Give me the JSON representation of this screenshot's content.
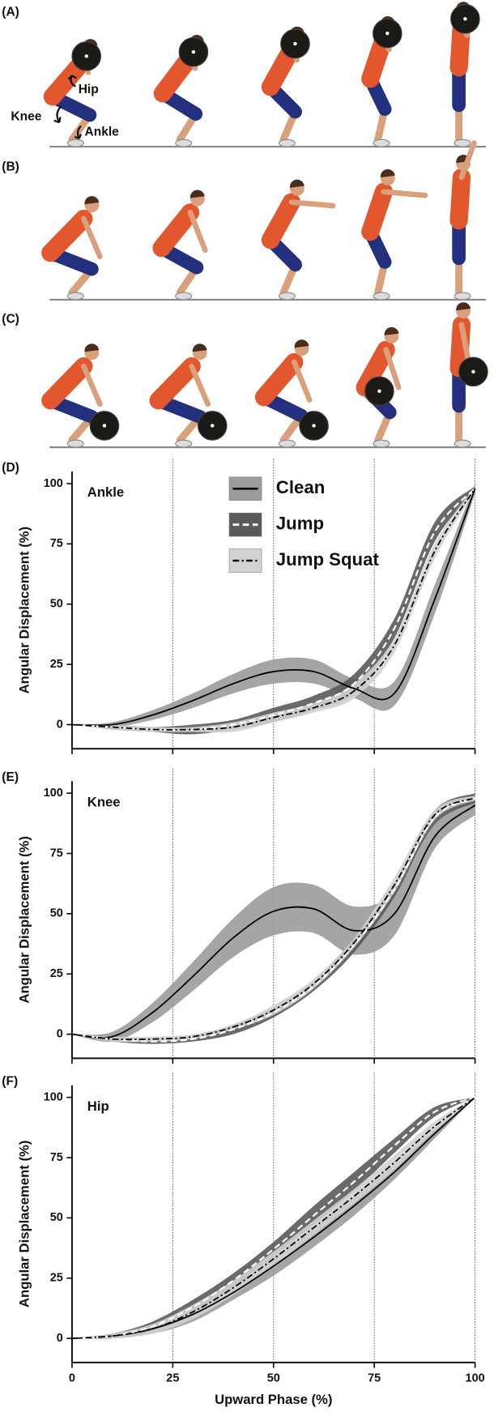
{
  "panels": [
    {
      "label": "(A)",
      "annotations": [
        "Hip",
        "Knee",
        "Ankle"
      ]
    },
    {
      "label": "(B)"
    },
    {
      "label": "(C)"
    }
  ],
  "chart_data": [
    {
      "type": "line",
      "panel_label": "(D)",
      "title": "Ankle",
      "ylabel": "Angular Displacement (%)",
      "x": [
        0,
        10,
        20,
        30,
        40,
        50,
        60,
        70,
        80,
        90,
        100
      ],
      "xlim": [
        0,
        100
      ],
      "xticks": [
        0,
        25,
        50,
        75,
        100
      ],
      "xtick_labels": false,
      "ylim": [
        -10,
        105
      ],
      "yticks": [
        0,
        25,
        50,
        75,
        100
      ],
      "vgrid": true,
      "legend": "upper center",
      "series": [
        {
          "name": "Clean",
          "color": "#9b9b9b",
          "line_color": "#000000",
          "line_style": "solid",
          "values": [
            0,
            0,
            4,
            10,
            17,
            22,
            22,
            15,
            13,
            52,
            98
          ],
          "sd": [
            0,
            1,
            2,
            3,
            4,
            5,
            5,
            4,
            5,
            6,
            2
          ]
        },
        {
          "name": "Jump",
          "color": "#5a5a5a",
          "line_color": "#ffffff",
          "line_style": "dashed",
          "values": [
            0,
            -1,
            -2,
            -2,
            0,
            4,
            9,
            17,
            40,
            80,
            98
          ],
          "sd": [
            0,
            1,
            1,
            2,
            2,
            3,
            3,
            4,
            4,
            4,
            1
          ]
        },
        {
          "name": "Jump Squat",
          "color": "#d2d2d2",
          "line_color": "#000000",
          "line_style": "dashdot",
          "values": [
            0,
            -1,
            -2,
            -2,
            -1,
            3,
            7,
            14,
            33,
            72,
            98
          ],
          "sd": [
            0,
            1,
            1,
            1,
            2,
            2,
            2,
            3,
            3,
            3,
            1
          ]
        }
      ]
    },
    {
      "type": "line",
      "panel_label": "(E)",
      "title": "Knee",
      "ylabel": "Angular Displacement (%)",
      "x": [
        0,
        10,
        20,
        30,
        40,
        50,
        60,
        70,
        80,
        90,
        100
      ],
      "xlim": [
        0,
        100
      ],
      "xticks": [
        0,
        25,
        50,
        75,
        100
      ],
      "xtick_labels": false,
      "ylim": [
        -10,
        105
      ],
      "yticks": [
        0,
        25,
        50,
        75,
        100
      ],
      "vgrid": true,
      "series": [
        {
          "color": "#9b9b9b",
          "line_color": "#000000",
          "line_style": "solid",
          "values": [
            0,
            -1,
            9,
            24,
            40,
            51,
            52,
            43,
            50,
            82,
            95
          ],
          "sd": [
            0,
            2,
            4,
            6,
            8,
            10,
            10,
            10,
            9,
            5,
            4
          ]
        },
        {
          "color": "#5a5a5a",
          "line_color": "#ffffff",
          "line_style": "dashed",
          "values": [
            0,
            -2,
            -3,
            -2,
            2,
            9,
            20,
            37,
            60,
            90,
            98
          ],
          "sd": [
            0,
            1,
            1,
            1,
            2,
            2,
            2,
            3,
            3,
            3,
            2
          ]
        },
        {
          "color": "#d2d2d2",
          "line_color": "#000000",
          "line_style": "dashdot",
          "values": [
            0,
            -2,
            -2,
            -1,
            3,
            10,
            21,
            38,
            62,
            91,
            98
          ],
          "sd": [
            0,
            1,
            1,
            1,
            1,
            2,
            2,
            2,
            3,
            2,
            1
          ]
        }
      ]
    },
    {
      "type": "line",
      "panel_label": "(F)",
      "title": "Hip",
      "ylabel": "Angular Displacement (%)",
      "xlabel": "Upward Phase (%)",
      "x": [
        0,
        10,
        20,
        30,
        40,
        50,
        60,
        70,
        80,
        90,
        100
      ],
      "xlim": [
        0,
        100
      ],
      "xticks": [
        0,
        25,
        50,
        75,
        100
      ],
      "xtick_labels": true,
      "ylim": [
        -10,
        105
      ],
      "yticks": [
        0,
        25,
        50,
        75,
        100
      ],
      "vgrid": true,
      "series": [
        {
          "color": "#9b9b9b",
          "line_color": "#000000",
          "line_style": "solid",
          "values": [
            0,
            1,
            4,
            10,
            19,
            30,
            42,
            55,
            69,
            85,
            100
          ],
          "sd": [
            0,
            1,
            2,
            3,
            3,
            4,
            4,
            4,
            3,
            2,
            0
          ]
        },
        {
          "color": "#5a5a5a",
          "line_color": "#ffffff",
          "line_style": "dashed",
          "values": [
            0,
            1,
            5,
            13,
            24,
            37,
            51,
            65,
            80,
            94,
            100
          ],
          "sd": [
            0,
            1,
            2,
            3,
            3,
            3,
            4,
            4,
            3,
            2,
            0
          ]
        },
        {
          "color": "#d2d2d2",
          "line_color": "#000000",
          "line_style": "dashdot",
          "values": [
            0,
            1,
            4,
            11,
            21,
            33,
            46,
            59,
            73,
            88,
            100
          ],
          "sd": [
            0,
            1,
            2,
            3,
            3,
            3,
            3,
            3,
            3,
            2,
            0
          ]
        }
      ]
    }
  ]
}
